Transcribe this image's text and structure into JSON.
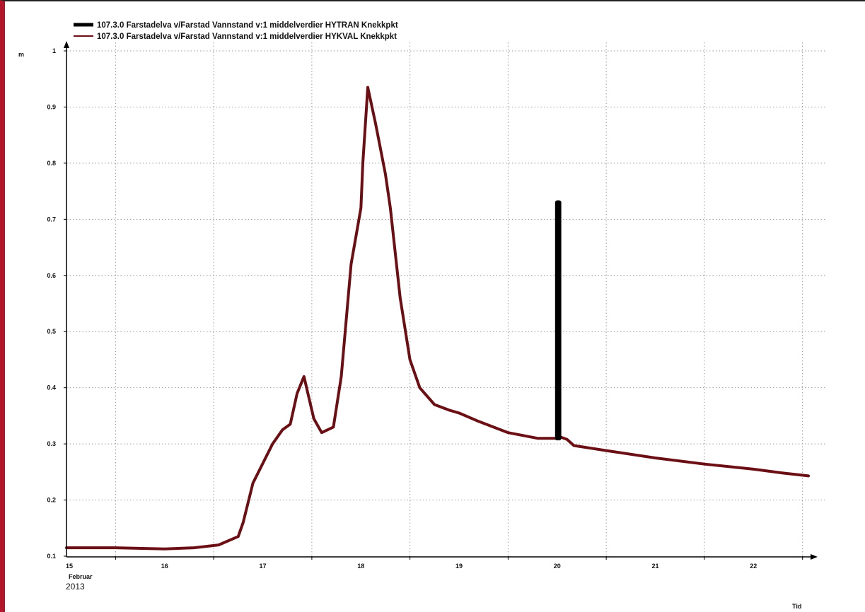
{
  "chart_data": {
    "type": "line",
    "title": "",
    "ylabel": "m",
    "xlabel": "Tid",
    "ylim": [
      0.1,
      1.0
    ],
    "yticks": [
      0.1,
      0.2,
      0.3,
      0.4,
      0.5,
      0.6,
      0.7,
      0.8,
      0.9,
      1.0
    ],
    "ytick_labels": [
      "0.1",
      "0.2",
      "0.3",
      "0.4",
      "0.5",
      "0.6",
      "0.7",
      "0.8",
      "0.9",
      "1"
    ],
    "xlim": [
      15.0,
      22.56
    ],
    "xticks": [
      15,
      16,
      17,
      18,
      19,
      20,
      21,
      22
    ],
    "xtick_labels": [
      "15",
      "16",
      "17",
      "18",
      "19",
      "20",
      "21",
      "22"
    ],
    "x_month_label": "Februar",
    "x_year_label": "2013",
    "grid": true,
    "legend_position": "top-left",
    "colors": {
      "HYTRAN": "#000000",
      "HYKVAL": "#6b0f14"
    },
    "series": [
      {
        "name": "107.3.0 Farstadelva v/Farstad Vannstand v:1 middelverdier HYTRAN Knekkpkt",
        "x": [
          20.0,
          20.0,
          20.02,
          20.02
        ],
        "y": [
          0.31,
          0.73,
          0.73,
          0.31
        ]
      },
      {
        "name": "107.3.0 Farstadelva v/Farstad Vannstand v:1 middelverdier HYKVAL Knekkpkt",
        "x": [
          15.0,
          15.5,
          16.0,
          16.3,
          16.55,
          16.75,
          16.8,
          16.9,
          17.0,
          17.1,
          17.2,
          17.28,
          17.35,
          17.42,
          17.46,
          17.52,
          17.6,
          17.72,
          17.8,
          17.9,
          18.0,
          18.02,
          18.07,
          18.15,
          18.25,
          18.3,
          18.4,
          18.5,
          18.6,
          18.75,
          18.9,
          19.0,
          19.2,
          19.5,
          19.8,
          20.0,
          20.02,
          20.1,
          20.17,
          20.5,
          21.0,
          21.5,
          22.0,
          22.3,
          22.56
        ],
        "y": [
          0.115,
          0.115,
          0.113,
          0.115,
          0.12,
          0.135,
          0.16,
          0.23,
          0.265,
          0.3,
          0.325,
          0.335,
          0.39,
          0.42,
          0.39,
          0.345,
          0.32,
          0.33,
          0.42,
          0.62,
          0.72,
          0.8,
          0.935,
          0.87,
          0.78,
          0.72,
          0.56,
          0.45,
          0.4,
          0.37,
          0.36,
          0.355,
          0.34,
          0.32,
          0.31,
          0.31,
          0.313,
          0.308,
          0.297,
          0.288,
          0.275,
          0.264,
          0.255,
          0.248,
          0.243
        ]
      }
    ]
  }
}
